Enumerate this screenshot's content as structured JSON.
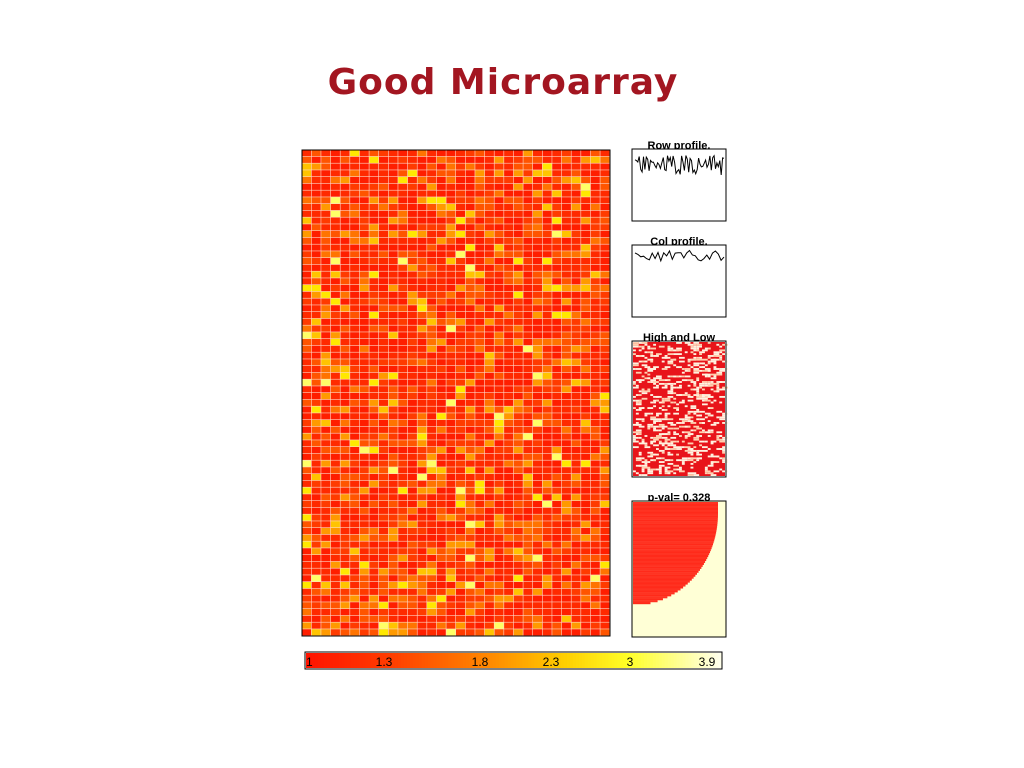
{
  "title": "Good Microarray",
  "panels": {
    "row_profile_title": "Row profile.",
    "col_profile_title": "Col profile.",
    "high_low_title": "High and Low",
    "pval_title": "p-val=  0.328"
  },
  "colors": {
    "title": "#a31621",
    "scale": [
      "#ff1a00",
      "#ff4d00",
      "#ff8800",
      "#ffc400",
      "#ffff33",
      "#ffffcc"
    ],
    "pval_fill": "#ff2a1a",
    "pval_bg": "#ffffd6"
  },
  "chart_data": [
    {
      "type": "heatmap",
      "name": "main",
      "rows": 72,
      "cols": 32,
      "value_range": [
        1,
        3.9
      ],
      "seed": 7
    },
    {
      "type": "line",
      "name": "row-profile",
      "title": "Row profile.",
      "seed": 11
    },
    {
      "type": "line",
      "name": "col-profile",
      "title": "Col profile.",
      "seed": 23
    },
    {
      "type": "heatmap",
      "name": "high-low",
      "title": "High and Low",
      "seed": 41
    },
    {
      "type": "area",
      "name": "p-value",
      "title": "p-val=  0.328",
      "p_value": 0.328
    },
    {
      "type": "heatmap",
      "name": "color-scale",
      "ticks": [
        "1",
        "1.3",
        "1.8",
        "2.3",
        "3",
        "3.9"
      ]
    }
  ]
}
